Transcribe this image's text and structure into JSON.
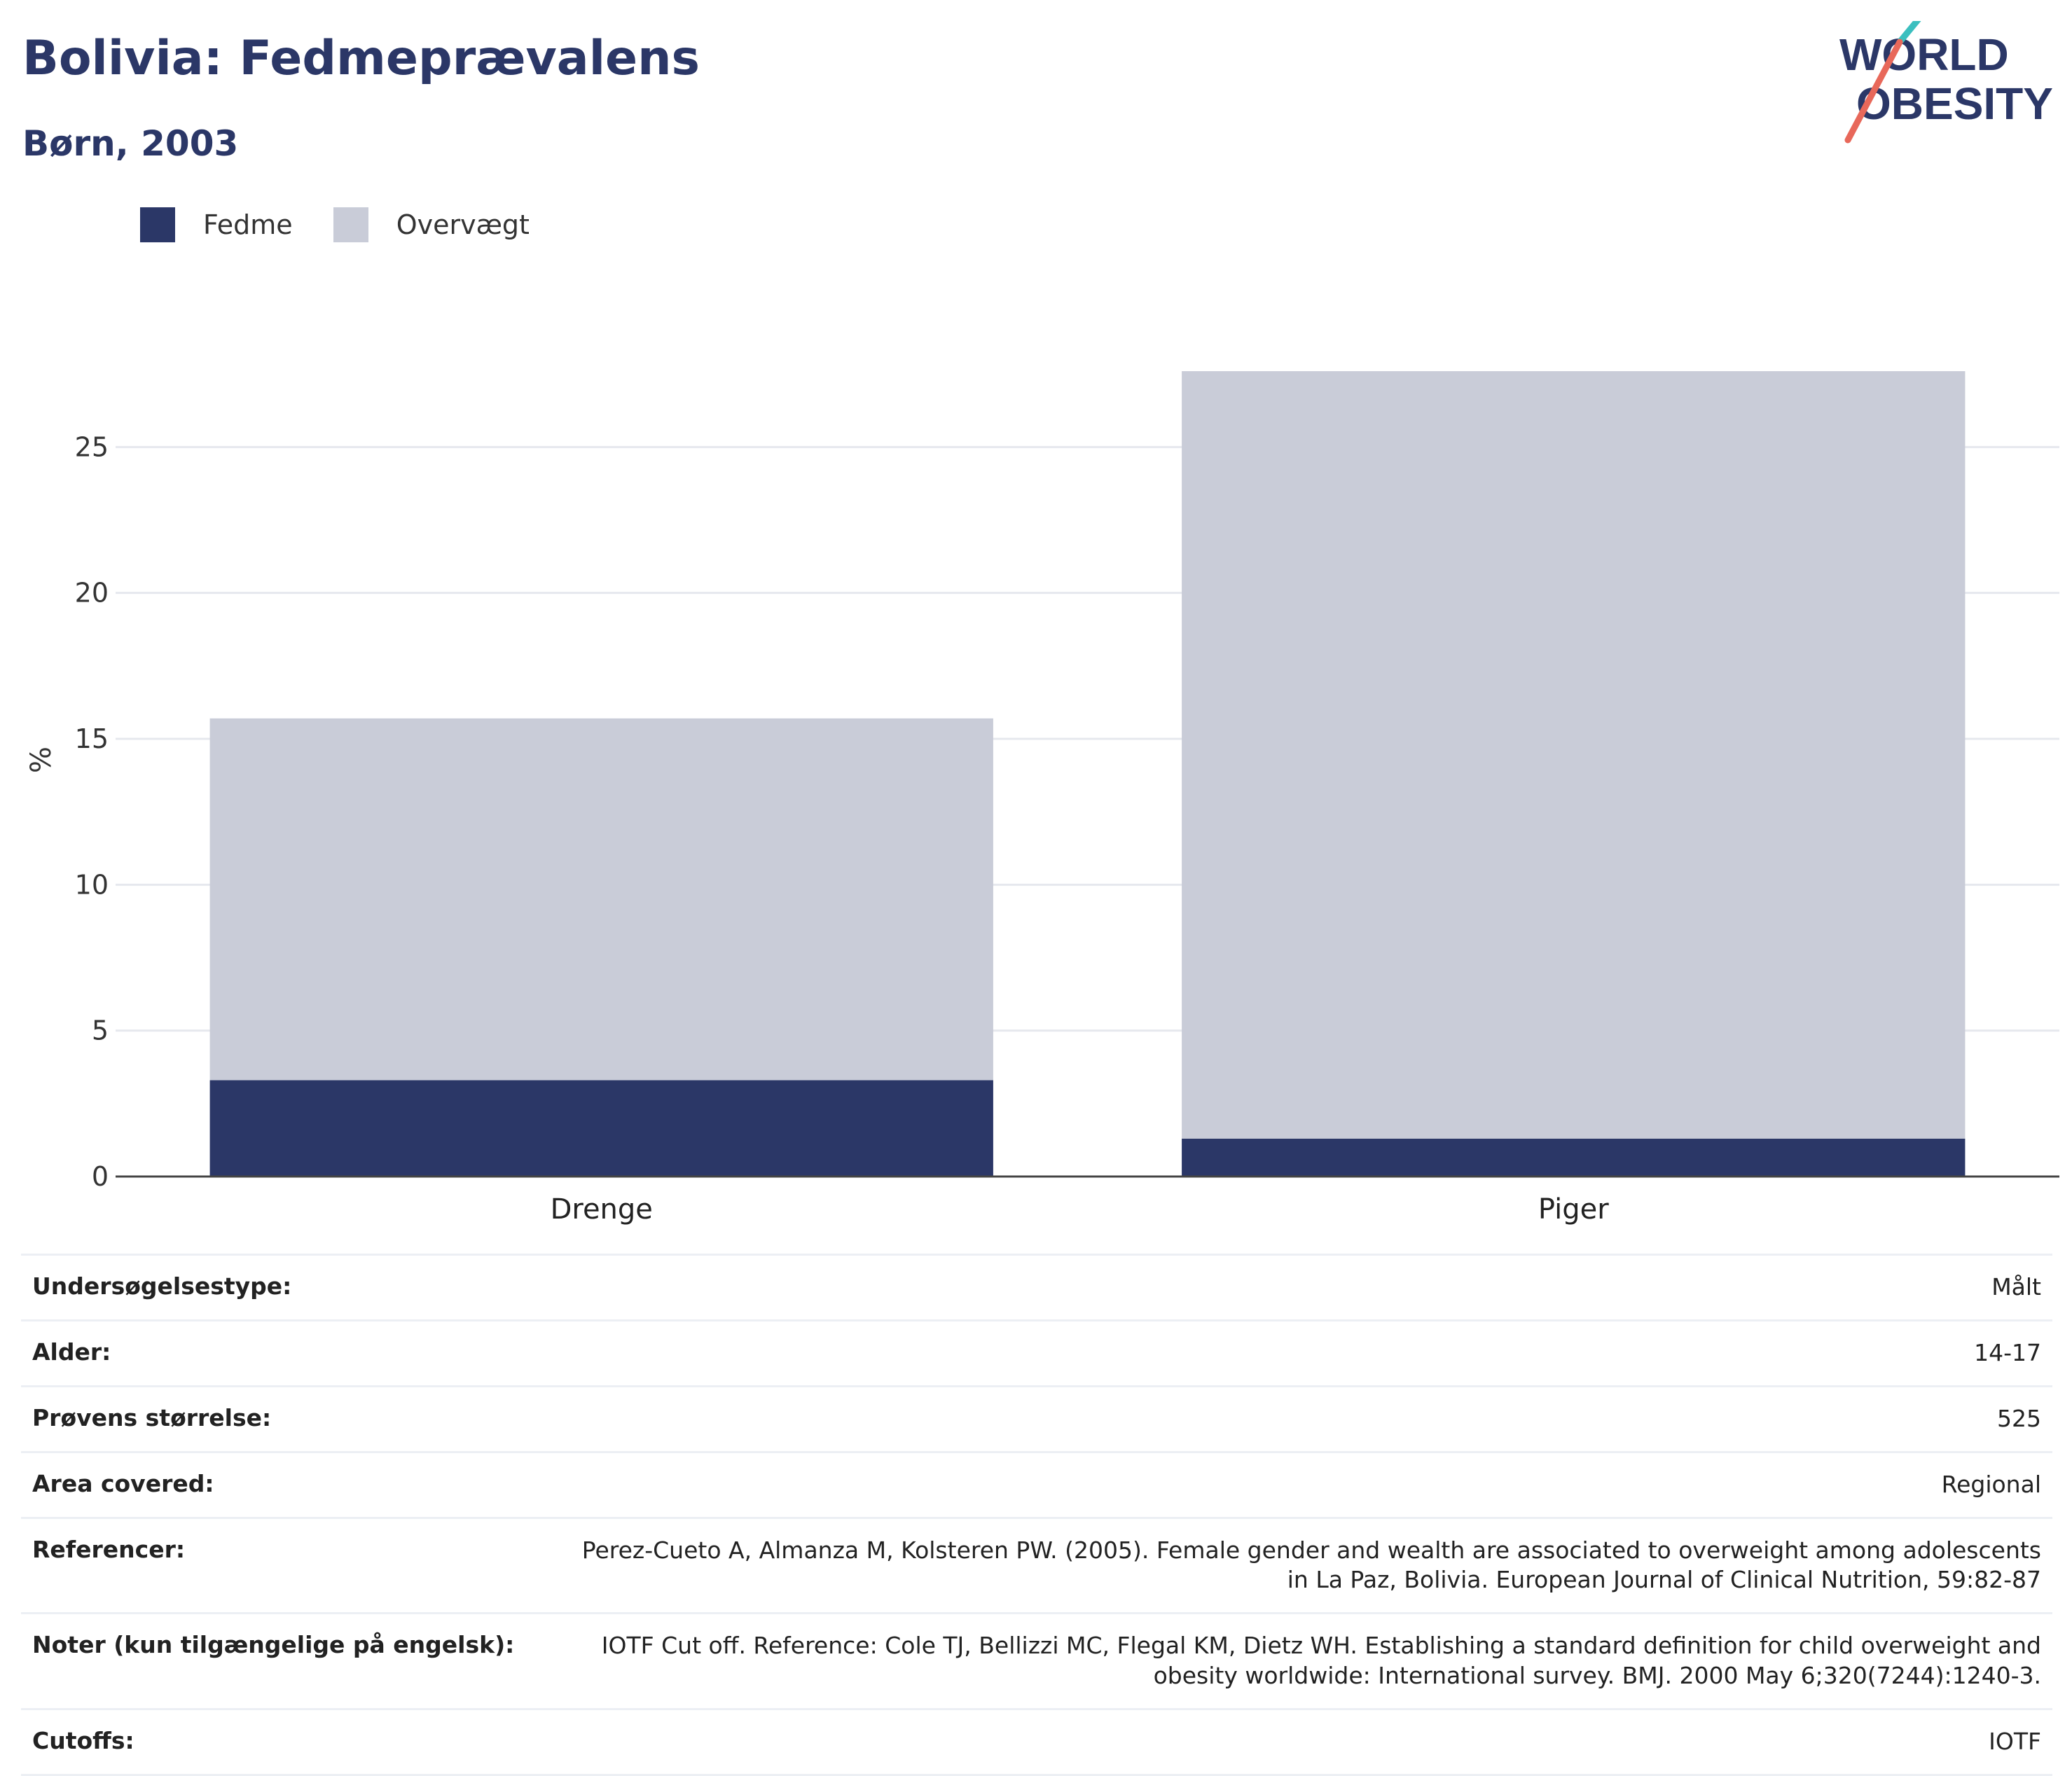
{
  "header": {
    "title": "Bolivia: Fedmeprævalens",
    "subtitle": "Børn, 2003"
  },
  "logo": {
    "line1": "WORLD",
    "line2": "OBESITY",
    "colors": {
      "text": "#2b3767",
      "slash_red": "#e8685a",
      "slash_teal": "#3bbfbf"
    }
  },
  "legend": [
    {
      "label": "Fedme",
      "color": "#2b3767"
    },
    {
      "label": "Overvægt",
      "color": "#c9ccd8"
    }
  ],
  "chart_data": {
    "type": "bar",
    "stacked": true,
    "categories": [
      "Drenge",
      "Piger"
    ],
    "series": [
      {
        "name": "Fedme",
        "color": "#2b3767",
        "values": [
          3.3,
          1.3
        ]
      },
      {
        "name": "Overvægt",
        "color": "#c9ccd8",
        "values": [
          12.4,
          26.3
        ]
      }
    ],
    "ylabel": "%",
    "ylim": [
      0,
      30
    ],
    "yticks": [
      0,
      5,
      10,
      15,
      20,
      25
    ],
    "grid": true,
    "legend_position": "top-left"
  },
  "info_table": [
    {
      "label": "Undersøgelsestype:",
      "value": "Målt"
    },
    {
      "label": "Alder:",
      "value": "14-17"
    },
    {
      "label": "Prøvens størrelse:",
      "value": "525"
    },
    {
      "label": "Area covered:",
      "value": "Regional"
    },
    {
      "label": "Referencer:",
      "value": "Perez-Cueto A, Almanza M, Kolsteren PW. (2005). Female gender and wealth are associated to overweight among adolescents in La Paz, Bolivia. European Journal of Clinical Nutrition, 59:82-87"
    },
    {
      "label": "Noter (kun tilgængelige på engelsk):",
      "value": "IOTF Cut off. Reference: Cole TJ, Bellizzi MC, Flegal KM, Dietz WH. Establishing a standard definition for child overweight and obesity worldwide: International survey. BMJ. 2000 May 6;320(7244):1240-3."
    },
    {
      "label": "Cutoffs:",
      "value": "IOTF"
    }
  ]
}
